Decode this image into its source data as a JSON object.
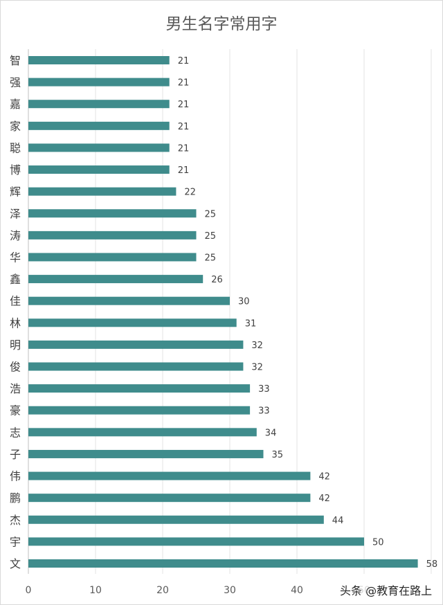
{
  "chart_data": {
    "type": "bar",
    "orientation": "horizontal",
    "title": "男生名字常用字",
    "categories": [
      "智",
      "强",
      "嘉",
      "家",
      "聪",
      "博",
      "辉",
      "泽",
      "涛",
      "华",
      "鑫",
      "佳",
      "林",
      "明",
      "俊",
      "浩",
      "豪",
      "志",
      "子",
      "伟",
      "鹏",
      "杰",
      "宇",
      "文"
    ],
    "values": [
      21,
      21,
      21,
      21,
      21,
      21,
      22,
      25,
      25,
      25,
      26,
      30,
      31,
      32,
      32,
      33,
      33,
      34,
      35,
      42,
      42,
      44,
      50,
      58
    ],
    "xlim": [
      0,
      60
    ],
    "xticks": [
      0,
      10,
      20,
      30,
      40,
      50
    ],
    "grid": "vertical",
    "legend": "none",
    "data_labels": true,
    "bar_color": "#3f8c8c"
  },
  "watermark": "头条 @教育在路上"
}
